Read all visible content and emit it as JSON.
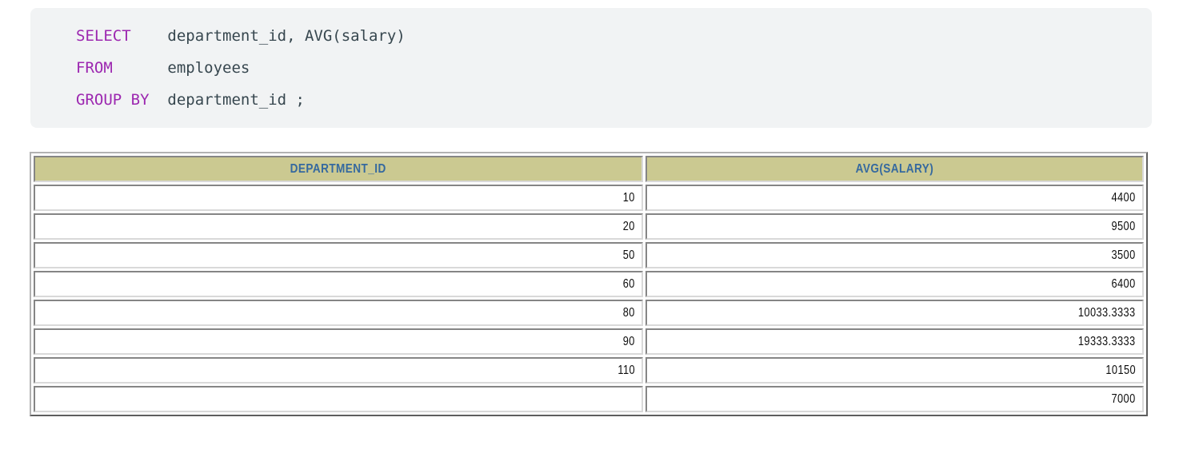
{
  "sql": {
    "lines": [
      {
        "keyword": "SELECT",
        "rest": "    department_id, AVG(salary)"
      },
      {
        "keyword": "FROM",
        "rest": "      employees"
      },
      {
        "keyword": "GROUP BY",
        "rest": "  department_id ;"
      }
    ],
    "keyword_color": "#9c27b0",
    "code_color": "#37474f",
    "block_background": "#f1f3f4"
  },
  "results_table": {
    "headers": [
      "DEPARTMENT_ID",
      "AVG(SALARY)"
    ],
    "rows": [
      [
        "10",
        "4400"
      ],
      [
        "20",
        "9500"
      ],
      [
        "50",
        "3500"
      ],
      [
        "60",
        "6400"
      ],
      [
        "80",
        "10033.3333"
      ],
      [
        "90",
        "19333.3333"
      ],
      [
        "110",
        "10150"
      ],
      [
        "",
        "7000"
      ]
    ],
    "header_background": "#cbc991",
    "header_text_color": "#35699f"
  }
}
